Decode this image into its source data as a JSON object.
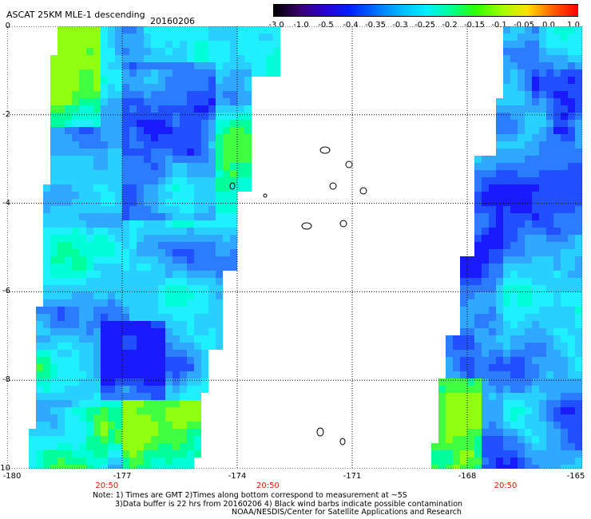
{
  "header": {
    "title": "ASCAT 25KM MLE-1 descending",
    "date": "20160206"
  },
  "colorbar": {
    "labels": [
      "-3.0",
      "-1.0",
      "-0.5",
      "-0.4",
      "-0.35",
      "-0.3",
      "-0.25",
      "-0.2",
      "-0.15",
      "-0.1",
      "-0.05",
      "0.0",
      "1.0"
    ],
    "colors": [
      "#000000",
      "#3a0070",
      "#2a00d0",
      "#0020ff",
      "#0070ff",
      "#00b8ff",
      "#00f0ff",
      "#00ff90",
      "#30ff00",
      "#a0ff00",
      "#ffe000",
      "#ff6000",
      "#ff0000"
    ]
  },
  "axes": {
    "y_labels": [
      "0",
      "-2",
      "-4",
      "-6",
      "-8",
      "-10"
    ],
    "x_labels": [
      "-180",
      "-177",
      "-174",
      "-171",
      "-168",
      "-165"
    ],
    "lat_range": [
      0,
      -10
    ],
    "lon_range": [
      -180,
      -165
    ]
  },
  "time_labels": [
    {
      "lon": -177.4,
      "text": "20:50"
    },
    {
      "lon": -173.2,
      "text": "20:50"
    },
    {
      "lon": -167.0,
      "text": "20:50"
    }
  ],
  "notes": {
    "line1": "Note: 1) Times are GMT 2)Times along bottom correspond to measurement at ~5S",
    "line2": "3)Data buffer is 22 hrs from 20160206 4) Black wind barbs indicate possible contamination",
    "line3": "NOAA/NESDIS/Center for Satellite Applications and Research"
  }
}
